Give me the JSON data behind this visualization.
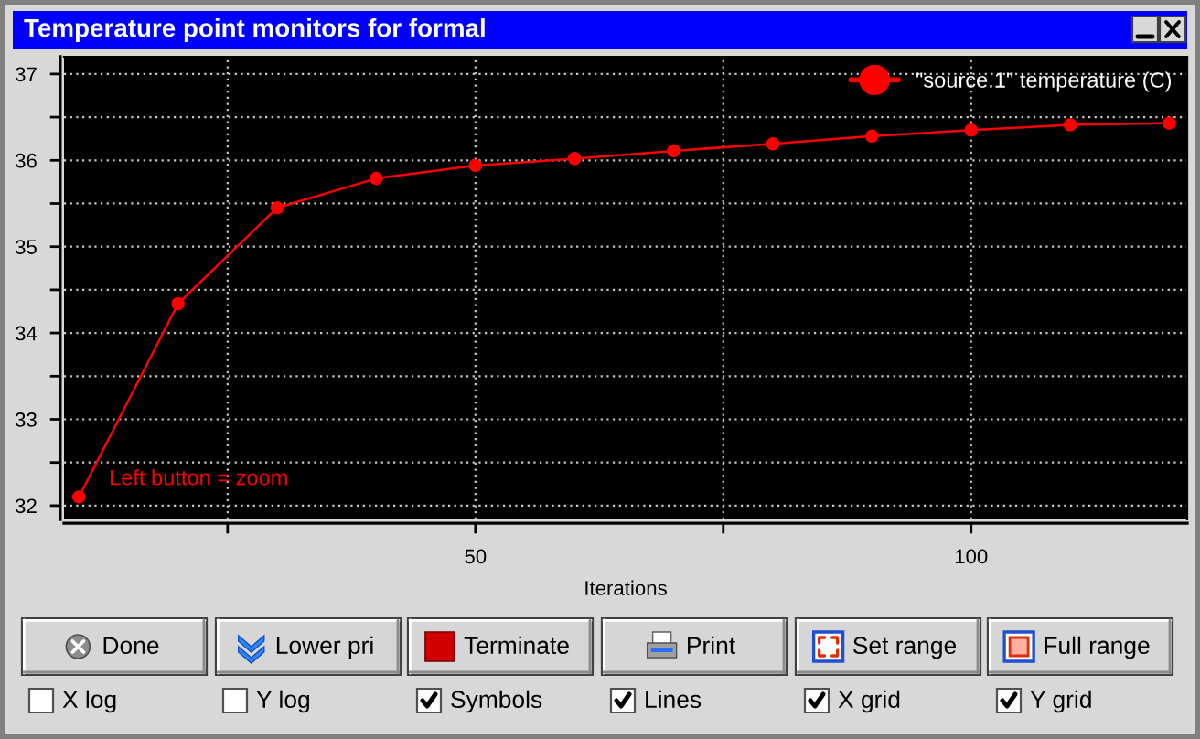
{
  "chart_data": {
    "type": "line",
    "title": "Temperature point monitors for formal",
    "xlabel": "Iterations",
    "x": [
      10,
      20,
      30,
      40,
      50,
      60,
      70,
      80,
      90,
      100,
      110,
      120
    ],
    "series": [
      {
        "name": "\"source.1\" temperature (C)",
        "color": "#ff0000",
        "values": [
          32.1,
          34.34,
          35.45,
          35.79,
          35.94,
          36.02,
          36.11,
          36.19,
          36.28,
          36.35,
          36.41,
          36.43
        ]
      }
    ],
    "xlim": [
      8.5,
      121.8
    ],
    "xticks": [
      {
        "value": 25,
        "label": null
      },
      50,
      {
        "value": 75,
        "label": null
      },
      100
    ],
    "ylim": [
      31.84,
      37.2
    ],
    "yticks": [
      32,
      {
        "value": 32.5,
        "label": null
      },
      33,
      {
        "value": 33.5,
        "label": null
      },
      34,
      {
        "value": 34.5,
        "label": null
      },
      35,
      {
        "value": 35.5,
        "label": null
      },
      36,
      {
        "value": 36.5,
        "label": null
      },
      37
    ],
    "grid": true,
    "legend": "top right",
    "marker": "circle",
    "line_style": "solid",
    "annotations": [
      "Left button = zoom",
      "Done",
      "Lower pri",
      "Terminate",
      "Print",
      "Set range",
      "Full range",
      "X log",
      "Y log",
      "Symbols",
      "Lines",
      "X grid",
      "Y grid"
    ]
  }
}
